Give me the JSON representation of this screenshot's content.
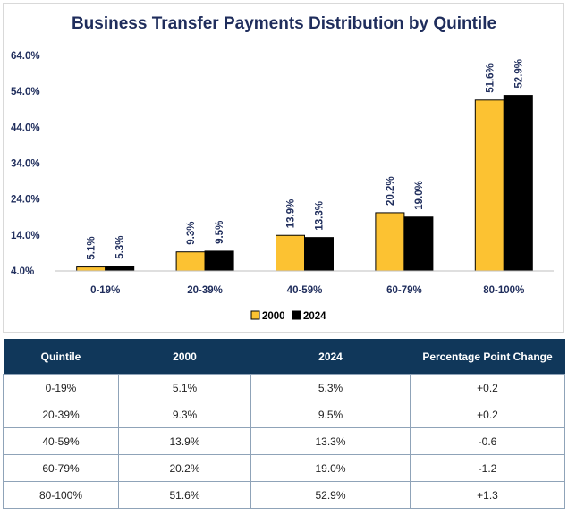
{
  "chart_data": {
    "type": "bar",
    "title": "Business Transfer Payments Distribution by Quintile",
    "categories": [
      "0-19%",
      "20-39%",
      "40-59%",
      "60-79%",
      "80-100%"
    ],
    "series": [
      {
        "name": "2000",
        "values": [
          5.1,
          9.3,
          13.9,
          20.2,
          51.6
        ],
        "labels": [
          "5.1%",
          "9.3%",
          "13.9%",
          "20.2%",
          "51.6%"
        ],
        "color": "#fcc232"
      },
      {
        "name": "2024",
        "values": [
          5.3,
          9.5,
          13.3,
          19.0,
          52.9
        ],
        "labels": [
          "5.3%",
          "9.5%",
          "13.3%",
          "19.0%",
          "52.9%"
        ],
        "color": "#000000"
      }
    ],
    "yticks": [
      "4.0%",
      "14.0%",
      "24.0%",
      "34.0%",
      "44.0%",
      "54.0%",
      "64.0%"
    ],
    "ylim": [
      4,
      64
    ],
    "xlabel": "",
    "ylabel": "",
    "grid": false,
    "legend": "bottom-center"
  },
  "table": {
    "headers": [
      "Quintile",
      "2000",
      "2024",
      "Percentage Point Change"
    ],
    "rows": [
      [
        "0-19%",
        "5.1%",
        "5.3%",
        "+0.2"
      ],
      [
        "20-39%",
        "9.3%",
        "9.5%",
        "+0.2"
      ],
      [
        "40-59%",
        "13.9%",
        "13.3%",
        "-0.6"
      ],
      [
        "60-79%",
        "20.2%",
        "19.0%",
        "-1.2"
      ],
      [
        "80-100%",
        "51.6%",
        "52.9%",
        "+1.3"
      ]
    ]
  }
}
